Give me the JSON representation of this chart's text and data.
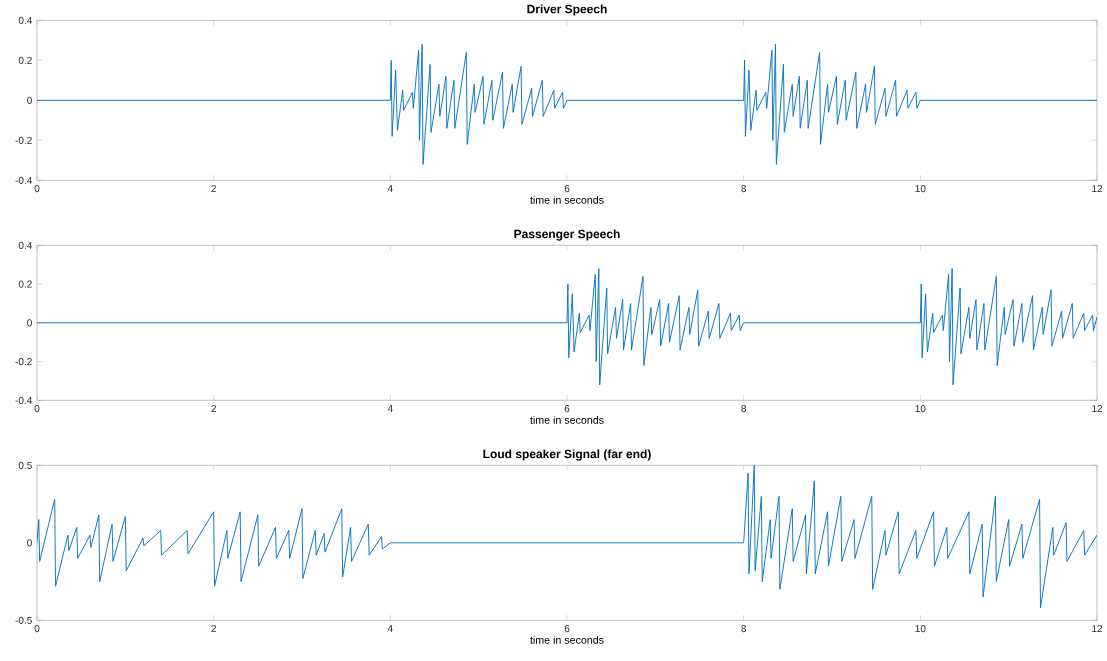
{
  "chart_data": [
    {
      "type": "line",
      "title": "Driver Speech",
      "xlabel": "time in seconds",
      "color": "#0072bd",
      "xlim": [
        0,
        12
      ],
      "ylim": [
        -0.4,
        0.4
      ],
      "xticks": [
        0,
        2,
        4,
        6,
        8,
        10,
        12
      ],
      "yticks": [
        -0.4,
        -0.2,
        0,
        0.2,
        0.4
      ],
      "x": [
        0,
        4.0,
        4.01,
        4.02,
        4.06,
        4.08,
        4.14,
        4.15,
        4.25,
        4.26,
        4.32,
        4.33,
        4.36,
        4.37,
        4.45,
        4.46,
        4.55,
        4.56,
        4.63,
        4.64,
        4.72,
        4.73,
        4.86,
        4.87,
        4.95,
        4.96,
        5.05,
        5.06,
        5.15,
        5.16,
        5.27,
        5.28,
        5.38,
        5.39,
        5.48,
        5.49,
        5.6,
        5.61,
        5.72,
        5.73,
        5.85,
        5.86,
        5.95,
        5.96,
        6.0,
        8.0,
        8.01,
        8.02,
        8.06,
        8.08,
        8.14,
        8.15,
        8.25,
        8.26,
        8.32,
        8.33,
        8.36,
        8.37,
        8.45,
        8.46,
        8.55,
        8.56,
        8.63,
        8.64,
        8.72,
        8.73,
        8.86,
        8.87,
        8.95,
        8.96,
        9.05,
        9.06,
        9.15,
        9.16,
        9.27,
        9.28,
        9.38,
        9.39,
        9.48,
        9.49,
        9.6,
        9.61,
        9.72,
        9.73,
        9.85,
        9.86,
        9.95,
        9.96,
        10.0,
        12
      ],
      "values": [
        0,
        0,
        0.2,
        -0.18,
        0.15,
        -0.15,
        0.05,
        -0.05,
        0.04,
        -0.04,
        0.25,
        -0.2,
        0.28,
        -0.32,
        0.18,
        -0.16,
        0.08,
        -0.08,
        0.12,
        -0.14,
        0.1,
        -0.14,
        0.24,
        -0.22,
        0.08,
        -0.06,
        0.12,
        -0.12,
        0.1,
        -0.1,
        0.14,
        -0.14,
        0.08,
        -0.06,
        0.17,
        -0.12,
        0.06,
        -0.08,
        0.1,
        -0.08,
        0.05,
        -0.04,
        0.04,
        -0.04,
        0,
        0,
        0.2,
        -0.18,
        0.15,
        -0.15,
        0.05,
        -0.05,
        0.04,
        -0.04,
        0.25,
        -0.2,
        0.28,
        -0.32,
        0.18,
        -0.16,
        0.08,
        -0.08,
        0.12,
        -0.14,
        0.1,
        -0.14,
        0.24,
        -0.22,
        0.08,
        -0.06,
        0.12,
        -0.12,
        0.1,
        -0.1,
        0.14,
        -0.14,
        0.08,
        -0.06,
        0.17,
        -0.12,
        0.06,
        -0.08,
        0.1,
        -0.08,
        0.05,
        -0.04,
        0.04,
        -0.04,
        0,
        0
      ]
    },
    {
      "type": "line",
      "title": "Passenger Speech",
      "xlabel": "time in seconds",
      "color": "#0072bd",
      "xlim": [
        0,
        12
      ],
      "ylim": [
        -0.4,
        0.4
      ],
      "xticks": [
        0,
        2,
        4,
        6,
        8,
        10,
        12
      ],
      "yticks": [
        -0.4,
        -0.2,
        0,
        0.2,
        0.4
      ],
      "x": [
        0,
        6.0,
        6.01,
        6.02,
        6.06,
        6.08,
        6.14,
        6.15,
        6.25,
        6.26,
        6.32,
        6.33,
        6.36,
        6.37,
        6.45,
        6.46,
        6.55,
        6.56,
        6.63,
        6.64,
        6.72,
        6.73,
        6.86,
        6.87,
        6.95,
        6.96,
        7.05,
        7.06,
        7.15,
        7.16,
        7.27,
        7.28,
        7.38,
        7.39,
        7.48,
        7.49,
        7.6,
        7.61,
        7.72,
        7.73,
        7.85,
        7.86,
        7.95,
        7.96,
        8.0,
        10.0,
        10.01,
        10.02,
        10.06,
        10.08,
        10.14,
        10.15,
        10.25,
        10.26,
        10.32,
        10.33,
        10.36,
        10.37,
        10.45,
        10.46,
        10.55,
        10.56,
        10.63,
        10.64,
        10.72,
        10.73,
        10.86,
        10.87,
        10.95,
        10.96,
        11.05,
        11.06,
        11.15,
        11.16,
        11.27,
        11.28,
        11.38,
        11.39,
        11.48,
        11.49,
        11.6,
        11.61,
        11.72,
        11.73,
        11.85,
        11.86,
        11.95,
        11.96,
        12.0
      ],
      "values": [
        0,
        0,
        0.2,
        -0.18,
        0.15,
        -0.15,
        0.05,
        -0.05,
        0.04,
        -0.04,
        0.25,
        -0.2,
        0.28,
        -0.32,
        0.18,
        -0.16,
        0.08,
        -0.08,
        0.12,
        -0.14,
        0.1,
        -0.14,
        0.24,
        -0.22,
        0.08,
        -0.06,
        0.12,
        -0.12,
        0.1,
        -0.1,
        0.14,
        -0.14,
        0.08,
        -0.06,
        0.17,
        -0.12,
        0.06,
        -0.08,
        0.1,
        -0.08,
        0.05,
        -0.04,
        0.04,
        -0.04,
        0,
        0,
        0.2,
        -0.18,
        0.15,
        -0.15,
        0.05,
        -0.05,
        0.04,
        -0.04,
        0.25,
        -0.2,
        0.28,
        -0.32,
        0.18,
        -0.16,
        0.08,
        -0.08,
        0.12,
        -0.14,
        0.1,
        -0.14,
        0.24,
        -0.22,
        0.08,
        -0.06,
        0.12,
        -0.12,
        0.1,
        -0.1,
        0.14,
        -0.14,
        0.08,
        -0.06,
        0.17,
        -0.12,
        0.06,
        -0.08,
        0.1,
        -0.08,
        0.05,
        -0.04,
        0.04,
        -0.04,
        0.03
      ]
    },
    {
      "type": "line",
      "title": "Loud speaker Signal (far end)",
      "xlabel": "time in seconds",
      "color": "#0072bd",
      "xlim": [
        0,
        12
      ],
      "ylim": [
        -0.5,
        0.5
      ],
      "xticks": [
        0,
        2,
        4,
        6,
        8,
        10,
        12
      ],
      "yticks": [
        -0.5,
        0,
        0.5
      ],
      "x": [
        0,
        0.02,
        0.03,
        0.2,
        0.21,
        0.35,
        0.36,
        0.45,
        0.46,
        0.6,
        0.61,
        0.7,
        0.71,
        0.85,
        0.86,
        1.0,
        1.01,
        1.2,
        1.21,
        1.4,
        1.41,
        1.7,
        1.71,
        2.0,
        2.01,
        2.15,
        2.16,
        2.3,
        2.31,
        2.5,
        2.51,
        2.7,
        2.71,
        2.85,
        2.86,
        3.0,
        3.01,
        3.15,
        3.16,
        3.25,
        3.26,
        3.45,
        3.46,
        3.55,
        3.56,
        3.75,
        3.76,
        3.9,
        3.91,
        4.0,
        8.0,
        8.05,
        8.06,
        8.12,
        8.13,
        8.2,
        8.21,
        8.3,
        8.31,
        8.4,
        8.41,
        8.55,
        8.56,
        8.7,
        8.71,
        8.8,
        8.81,
        8.95,
        8.96,
        9.1,
        9.11,
        9.25,
        9.26,
        9.45,
        9.46,
        9.6,
        9.61,
        9.75,
        9.76,
        9.95,
        9.96,
        10.15,
        10.16,
        10.3,
        10.31,
        10.55,
        10.56,
        10.7,
        10.71,
        10.85,
        10.86,
        11.0,
        11.01,
        11.15,
        11.16,
        11.35,
        11.36,
        11.5,
        11.51,
        11.65,
        11.66,
        11.85,
        11.86,
        12.0
      ],
      "values": [
        0,
        0.15,
        -0.12,
        0.28,
        -0.28,
        0.05,
        -0.05,
        0.1,
        -0.1,
        0.05,
        -0.03,
        0.18,
        -0.25,
        0.12,
        -0.12,
        0.17,
        -0.18,
        0.03,
        -0.02,
        0.08,
        -0.08,
        0.08,
        -0.07,
        0.2,
        -0.28,
        0.08,
        -0.1,
        0.2,
        -0.25,
        0.18,
        -0.15,
        0.1,
        -0.1,
        0.08,
        -0.1,
        0.22,
        -0.23,
        0.08,
        -0.08,
        0.06,
        -0.06,
        0.22,
        -0.22,
        0.1,
        -0.12,
        0.12,
        -0.08,
        0.04,
        -0.04,
        0,
        0,
        0.45,
        -0.2,
        0.5,
        -0.18,
        0.3,
        -0.25,
        0.15,
        -0.1,
        0.3,
        -0.3,
        0.22,
        -0.12,
        0.18,
        -0.2,
        0.4,
        -0.2,
        0.2,
        -0.15,
        0.3,
        -0.12,
        0.15,
        -0.1,
        0.3,
        -0.3,
        0.08,
        -0.08,
        0.2,
        -0.2,
        0.08,
        -0.1,
        0.2,
        -0.15,
        0.1,
        -0.1,
        0.2,
        -0.2,
        0.12,
        -0.35,
        0.3,
        -0.25,
        0.15,
        -0.15,
        0.12,
        -0.1,
        0.28,
        -0.42,
        0.1,
        -0.08,
        0.13,
        -0.12,
        0.08,
        -0.08,
        0.05
      ]
    }
  ]
}
